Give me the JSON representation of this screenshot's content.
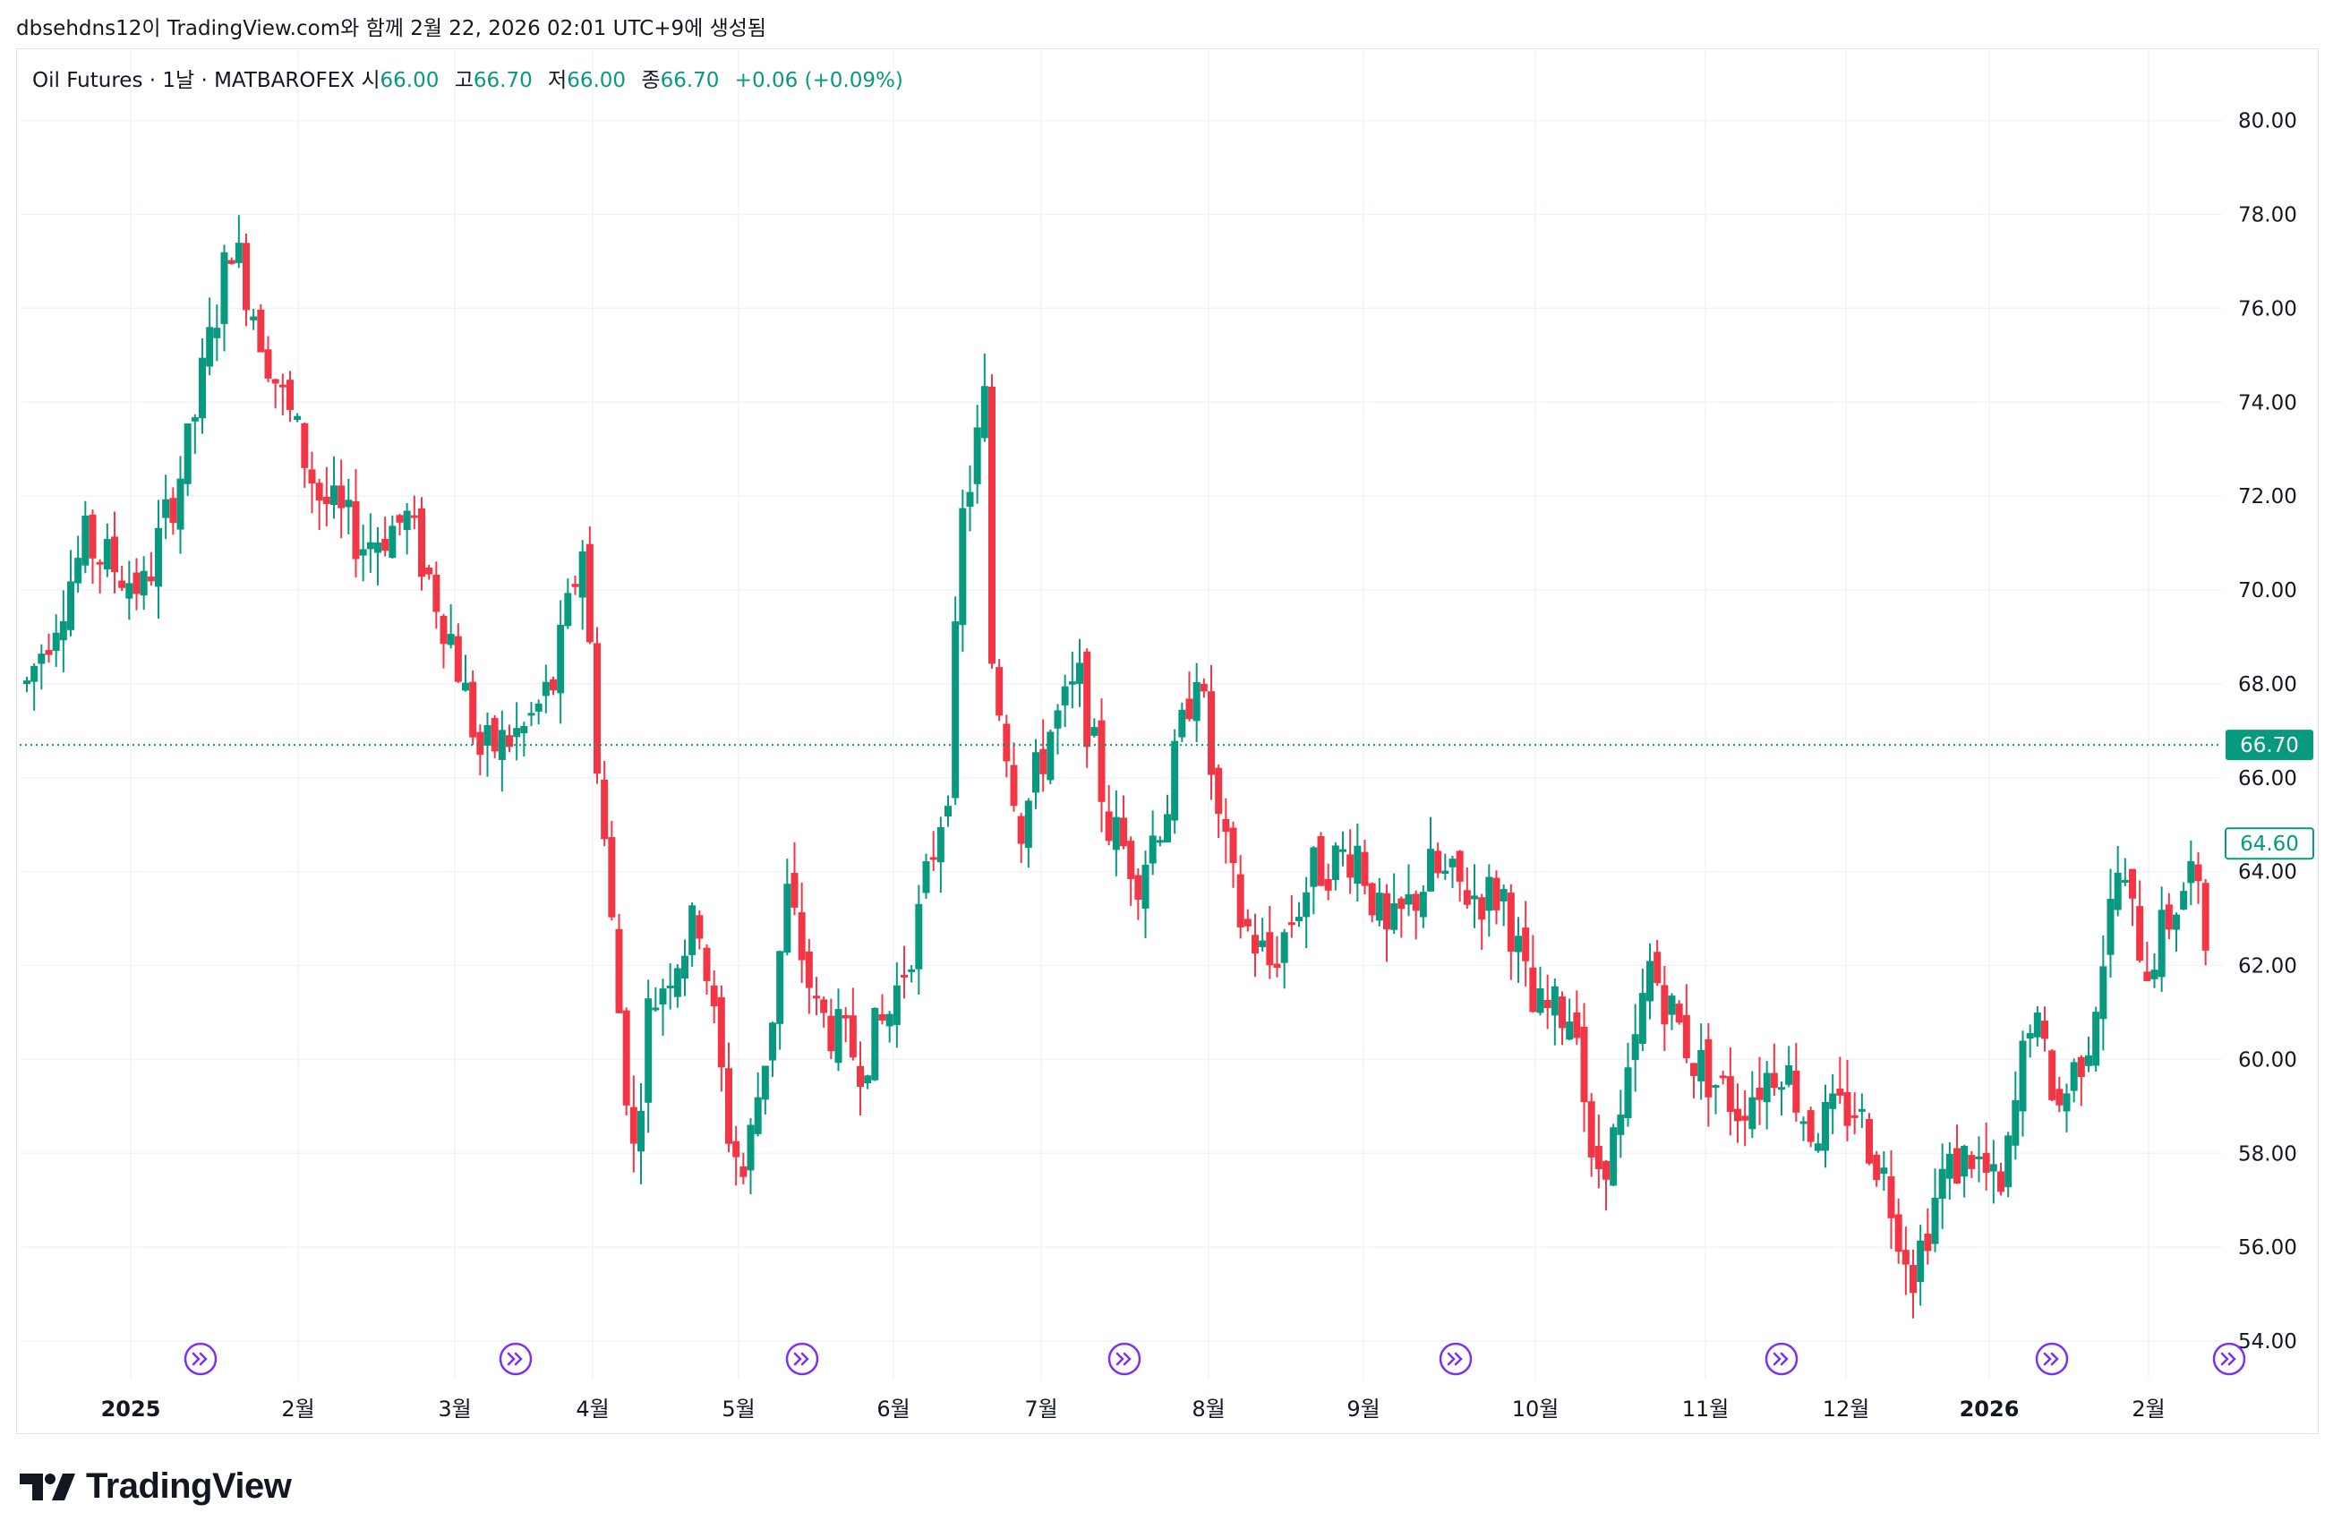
{
  "header": {
    "creator_text": "dbsehdns12이 TradingView.com와 함께 2월 22, 2026 02:01 UTC+9에 생성됨"
  },
  "legend": {
    "symbol": "Oil Futures · 1날 · MATBAROFEX",
    "open_label": "시",
    "open": "66.00",
    "high_label": "고",
    "high": "66.70",
    "low_label": "저",
    "low": "66.00",
    "close_label": "종",
    "close": "66.70",
    "change": "+0.06 (+0.09%)"
  },
  "colors": {
    "up": "#089981",
    "down": "#f23645",
    "grid": "#f0f3fa",
    "event": "#7b2ff7",
    "text": "#131722"
  },
  "price_tags": {
    "last": "66.70",
    "second": "64.60"
  },
  "footer": {
    "brand": "TradingView",
    "logo_icon": "tradingview-logo-icon"
  },
  "chart_data": {
    "type": "candlestick",
    "x_axis_labels": [
      "2025",
      "2월",
      "3월",
      "4월",
      "5월",
      "6월",
      "7월",
      "8월",
      "9월",
      "10월",
      "11월",
      "12월",
      "2026",
      "2월"
    ],
    "y_axis": {
      "labels": [
        "80.00",
        "78.00",
        "76.00",
        "74.00",
        "72.00",
        "70.00",
        "68.00",
        "66.00",
        "64.00",
        "62.00",
        "60.00",
        "58.00",
        "56.00",
        "54.00"
      ],
      "ylim": [
        53.2,
        81.5
      ],
      "position": "right"
    },
    "last_price": 66.7,
    "grid": true,
    "event_markers": 8,
    "waypoints": [
      [
        0,
        68.0
      ],
      [
        8,
        71.0
      ],
      [
        16,
        70.0
      ],
      [
        22,
        73.0
      ],
      [
        28,
        77.5
      ],
      [
        34,
        74.5
      ],
      [
        40,
        72.0
      ],
      [
        46,
        71.0
      ],
      [
        52,
        71.5
      ],
      [
        58,
        69.0
      ],
      [
        62,
        66.5
      ],
      [
        68,
        67.0
      ],
      [
        72,
        68.0
      ],
      [
        76,
        71.0
      ],
      [
        78,
        66.5
      ],
      [
        81,
        61.0
      ],
      [
        83,
        58.0
      ],
      [
        85,
        61.0
      ],
      [
        88,
        62.0
      ],
      [
        92,
        63.0
      ],
      [
        96,
        58.5
      ],
      [
        98,
        57.5
      ],
      [
        102,
        61.0
      ],
      [
        104,
        63.5
      ],
      [
        108,
        61.0
      ],
      [
        114,
        60.0
      ],
      [
        118,
        61.0
      ],
      [
        122,
        63.0
      ],
      [
        126,
        66.0
      ],
      [
        128,
        71.5
      ],
      [
        131,
        74.0
      ],
      [
        132,
        68.5
      ],
      [
        136,
        65.0
      ],
      [
        140,
        67.0
      ],
      [
        144,
        68.0
      ],
      [
        148,
        65.0
      ],
      [
        152,
        64.0
      ],
      [
        156,
        65.5
      ],
      [
        160,
        68.5
      ],
      [
        163,
        65.0
      ],
      [
        166,
        63.0
      ],
      [
        170,
        62.0
      ],
      [
        176,
        64.0
      ],
      [
        182,
        64.5
      ],
      [
        186,
        62.5
      ],
      [
        192,
        64.0
      ],
      [
        198,
        63.5
      ],
      [
        202,
        63.5
      ],
      [
        206,
        61.0
      ],
      [
        212,
        61.0
      ],
      [
        214,
        57.5
      ],
      [
        218,
        58.5
      ],
      [
        222,
        62.0
      ],
      [
        228,
        60.0
      ],
      [
        234,
        59.0
      ],
      [
        240,
        60.0
      ],
      [
        244,
        58.5
      ],
      [
        250,
        59.0
      ],
      [
        254,
        57.5
      ],
      [
        258,
        55.5
      ],
      [
        262,
        57.5
      ],
      [
        266,
        58.0
      ],
      [
        270,
        57.0
      ],
      [
        274,
        61.0
      ],
      [
        278,
        59.0
      ],
      [
        282,
        60.5
      ],
      [
        286,
        64.0
      ],
      [
        290,
        62.0
      ],
      [
        296,
        64.0
      ],
      [
        298,
        62.5
      ]
    ]
  }
}
